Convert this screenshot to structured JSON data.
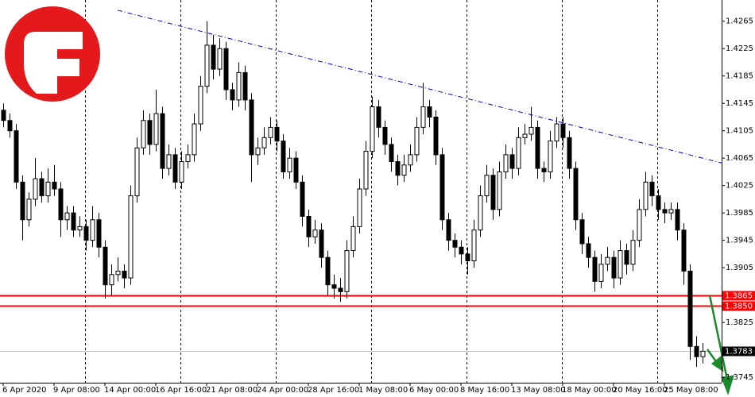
{
  "chart_data": {
    "type": "candlestick",
    "ylim": [
      1.3737,
      1.4296
    ],
    "yticks": [
      1.4265,
      1.4225,
      1.4185,
      1.4145,
      1.4105,
      1.4065,
      1.4025,
      1.3985,
      1.3945,
      1.3905,
      1.3825,
      1.3745
    ],
    "categories": [
      "6 Apr 2020",
      null,
      null,
      null,
      null,
      null,
      null,
      null,
      "9 Apr 08:00",
      null,
      null,
      null,
      null,
      null,
      null,
      null,
      "14 Apr 00:00",
      null,
      null,
      null,
      null,
      null,
      null,
      null,
      "16 Apr 16:00",
      null,
      null,
      null,
      null,
      null,
      null,
      null,
      "21 Apr 08:00",
      null,
      null,
      null,
      null,
      null,
      null,
      null,
      "24 Apr 00:00",
      null,
      null,
      null,
      null,
      null,
      null,
      null,
      "28 Apr 16:00",
      null,
      null,
      null,
      null,
      null,
      null,
      null,
      "1 May 08:00",
      null,
      null,
      null,
      null,
      null,
      null,
      null,
      "6 May 00:00",
      null,
      null,
      null,
      null,
      null,
      null,
      null,
      "8 May 16:00",
      null,
      null,
      null,
      null,
      null,
      null,
      null,
      "13 May 08:00",
      null,
      null,
      null,
      null,
      null,
      null,
      null,
      "18 May 00:00",
      null,
      null,
      null,
      null,
      null,
      null,
      null,
      "20 May 16:00",
      null,
      null,
      null,
      null,
      null,
      null,
      null,
      "25 May 08:00",
      null,
      null,
      null,
      null,
      null,
      null
    ],
    "ohlc": [
      [
        1.4135,
        1.4145,
        1.411,
        1.412
      ],
      [
        1.412,
        1.413,
        1.4095,
        1.4105
      ],
      [
        1.4105,
        1.4115,
        1.402,
        1.403
      ],
      [
        1.403,
        1.404,
        1.3945,
        1.3975
      ],
      [
        1.3975,
        1.4015,
        1.3965,
        1.4005
      ],
      [
        1.4005,
        1.4065,
        1.3995,
        1.4035
      ],
      [
        1.4035,
        1.4045,
        1.4,
        1.401
      ],
      [
        1.401,
        1.405,
        1.4,
        1.403
      ],
      [
        1.403,
        1.4055,
        1.401,
        1.402
      ],
      [
        1.402,
        1.403,
        1.395,
        1.3975
      ],
      [
        1.3975,
        1.3995,
        1.396,
        1.3985
      ],
      [
        1.3985,
        1.3995,
        1.395,
        1.396
      ],
      [
        1.396,
        1.398,
        1.395,
        1.3965
      ],
      [
        1.3965,
        1.3975,
        1.393,
        1.3945
      ],
      [
        1.3945,
        1.3995,
        1.3935,
        1.3975
      ],
      [
        1.3975,
        1.3985,
        1.392,
        1.3935
      ],
      [
        1.3935,
        1.3945,
        1.386,
        1.388
      ],
      [
        1.388,
        1.391,
        1.3865,
        1.3895
      ],
      [
        1.3895,
        1.392,
        1.3885,
        1.39
      ],
      [
        1.39,
        1.391,
        1.3875,
        1.389
      ],
      [
        1.389,
        1.4025,
        1.388,
        1.401
      ],
      [
        1.401,
        1.4095,
        1.4,
        1.408
      ],
      [
        1.408,
        1.4135,
        1.407,
        1.412
      ],
      [
        1.412,
        1.413,
        1.407,
        1.4085
      ],
      [
        1.4085,
        1.4165,
        1.4075,
        1.413
      ],
      [
        1.413,
        1.414,
        1.4035,
        1.405
      ],
      [
        1.405,
        1.4085,
        1.404,
        1.407
      ],
      [
        1.407,
        1.408,
        1.402,
        1.403
      ],
      [
        1.403,
        1.4075,
        1.402,
        1.406
      ],
      [
        1.406,
        1.4085,
        1.405,
        1.407
      ],
      [
        1.407,
        1.413,
        1.406,
        1.4115
      ],
      [
        1.4115,
        1.4185,
        1.4105,
        1.417
      ],
      [
        1.417,
        1.4265,
        1.416,
        1.423
      ],
      [
        1.423,
        1.4245,
        1.418,
        1.4195
      ],
      [
        1.4195,
        1.424,
        1.4185,
        1.4225
      ],
      [
        1.4225,
        1.4235,
        1.415,
        1.4165
      ],
      [
        1.4165,
        1.4175,
        1.4135,
        1.415
      ],
      [
        1.415,
        1.4205,
        1.414,
        1.419
      ],
      [
        1.419,
        1.42,
        1.4135,
        1.415
      ],
      [
        1.415,
        1.416,
        1.403,
        1.407
      ],
      [
        1.407,
        1.4095,
        1.4055,
        1.408
      ],
      [
        1.408,
        1.411,
        1.407,
        1.4095
      ],
      [
        1.4095,
        1.4125,
        1.4085,
        1.411
      ],
      [
        1.411,
        1.412,
        1.4075,
        1.409
      ],
      [
        1.409,
        1.41,
        1.4035,
        1.4045
      ],
      [
        1.4045,
        1.408,
        1.4035,
        1.4065
      ],
      [
        1.4065,
        1.4075,
        1.402,
        1.403
      ],
      [
        1.403,
        1.404,
        1.3965,
        1.398
      ],
      [
        1.398,
        1.399,
        1.3935,
        1.395
      ],
      [
        1.395,
        1.3975,
        1.394,
        1.396
      ],
      [
        1.396,
        1.397,
        1.3905,
        1.392
      ],
      [
        1.392,
        1.393,
        1.3865,
        1.388
      ],
      [
        1.388,
        1.3895,
        1.386,
        1.3875
      ],
      [
        1.3875,
        1.389,
        1.3855,
        1.387
      ],
      [
        1.387,
        1.3945,
        1.386,
        1.393
      ],
      [
        1.393,
        1.398,
        1.392,
        1.3965
      ],
      [
        1.3965,
        1.4035,
        1.3955,
        1.402
      ],
      [
        1.402,
        1.409,
        1.401,
        1.4075
      ],
      [
        1.4075,
        1.4155,
        1.4065,
        1.414
      ],
      [
        1.414,
        1.415,
        1.4095,
        1.411
      ],
      [
        1.411,
        1.412,
        1.407,
        1.4085
      ],
      [
        1.4085,
        1.4095,
        1.4045,
        1.406
      ],
      [
        1.406,
        1.407,
        1.4025,
        1.404
      ],
      [
        1.404,
        1.407,
        1.403,
        1.4055
      ],
      [
        1.4055,
        1.4085,
        1.4045,
        1.407
      ],
      [
        1.407,
        1.4125,
        1.406,
        1.411
      ],
      [
        1.411,
        1.4175,
        1.41,
        1.414
      ],
      [
        1.414,
        1.415,
        1.411,
        1.4125
      ],
      [
        1.4125,
        1.4135,
        1.4055,
        1.407
      ],
      [
        1.407,
        1.408,
        1.396,
        1.3975
      ],
      [
        1.3975,
        1.3985,
        1.393,
        1.3945
      ],
      [
        1.3945,
        1.3955,
        1.392,
        1.3935
      ],
      [
        1.3935,
        1.3945,
        1.391,
        1.3925
      ],
      [
        1.3925,
        1.3935,
        1.3895,
        1.3915
      ],
      [
        1.3915,
        1.3975,
        1.3905,
        1.396
      ],
      [
        1.396,
        1.4025,
        1.395,
        1.401
      ],
      [
        1.401,
        1.4055,
        1.4,
        1.404
      ],
      [
        1.404,
        1.405,
        1.3975,
        1.399
      ],
      [
        1.399,
        1.406,
        1.398,
        1.4045
      ],
      [
        1.4045,
        1.4085,
        1.4035,
        1.407
      ],
      [
        1.407,
        1.408,
        1.4035,
        1.405
      ],
      [
        1.405,
        1.411,
        1.404,
        1.4095
      ],
      [
        1.4095,
        1.4115,
        1.4085,
        1.41
      ],
      [
        1.41,
        1.414,
        1.409,
        1.411
      ],
      [
        1.411,
        1.412,
        1.4035,
        1.405
      ],
      [
        1.405,
        1.406,
        1.403,
        1.4045
      ],
      [
        1.4045,
        1.4105,
        1.4035,
        1.409
      ],
      [
        1.409,
        1.4125,
        1.408,
        1.4115
      ],
      [
        1.4115,
        1.4125,
        1.408,
        1.4095
      ],
      [
        1.4095,
        1.4105,
        1.4035,
        1.405
      ],
      [
        1.405,
        1.406,
        1.396,
        1.3975
      ],
      [
        1.3975,
        1.3985,
        1.3925,
        1.394
      ],
      [
        1.394,
        1.395,
        1.3905,
        1.392
      ],
      [
        1.392,
        1.393,
        1.387,
        1.3885
      ],
      [
        1.3885,
        1.3925,
        1.3875,
        1.391
      ],
      [
        1.391,
        1.3935,
        1.39,
        1.392
      ],
      [
        1.392,
        1.393,
        1.3875,
        1.389
      ],
      [
        1.389,
        1.3945,
        1.388,
        1.393
      ],
      [
        1.393,
        1.394,
        1.3895,
        1.391
      ],
      [
        1.391,
        1.396,
        1.39,
        1.3945
      ],
      [
        1.3945,
        1.4005,
        1.3935,
        1.399
      ],
      [
        1.399,
        1.4045,
        1.398,
        1.403
      ],
      [
        1.403,
        1.404,
        1.3995,
        1.401
      ],
      [
        1.401,
        1.402,
        1.3975,
        1.399
      ],
      [
        1.399,
        1.4,
        1.397,
        1.3985
      ],
      [
        1.3985,
        1.4,
        1.3975,
        1.399
      ],
      [
        1.399,
        1.4,
        1.3945,
        1.396
      ],
      [
        1.396,
        1.397,
        1.388,
        1.39
      ],
      [
        1.39,
        1.391,
        1.377,
        1.379
      ],
      [
        1.379,
        1.3805,
        1.376,
        1.3775
      ],
      [
        1.3775,
        1.3795,
        1.3765,
        1.3783
      ]
    ],
    "levels": [
      {
        "value": 1.3865,
        "color": "#ff0000"
      },
      {
        "value": 1.385,
        "label": "1.3850",
        "color": "#ff0000"
      }
    ],
    "current_price": 1.3783,
    "trendline": {
      "from": [
        18,
        1.4281
      ],
      "to": [
        113,
        1.4058
      ],
      "color": "#0000cc"
    }
  }
}
